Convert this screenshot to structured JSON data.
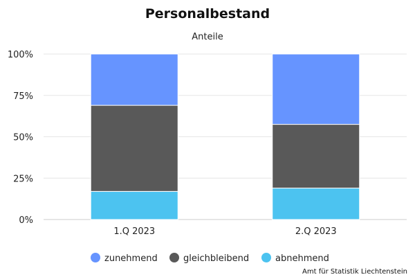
{
  "chart_data": {
    "type": "bar",
    "stacked": true,
    "title": "Personalbestand",
    "subtitle": "Anteile",
    "categories": [
      "1.Q 2023",
      "2.Q 2023"
    ],
    "series": [
      {
        "name": "abnehmend",
        "values": [
          17,
          19
        ],
        "color": "#4cc3f0"
      },
      {
        "name": "gleichbleibend",
        "values": [
          52,
          38.5
        ],
        "color": "#595959"
      },
      {
        "name": "zunehmend",
        "values": [
          31,
          42.5
        ],
        "color": "#6694ff"
      }
    ],
    "legend_order": [
      "zunehmend",
      "gleichbleibend",
      "abnehmend"
    ],
    "ylim": [
      0,
      100
    ],
    "yticks": [
      "0%",
      "25%",
      "50%",
      "75%",
      "100%"
    ],
    "grid": true,
    "legend_position": "bottom",
    "credits": "Amt für Statistik Liechtenstein"
  }
}
